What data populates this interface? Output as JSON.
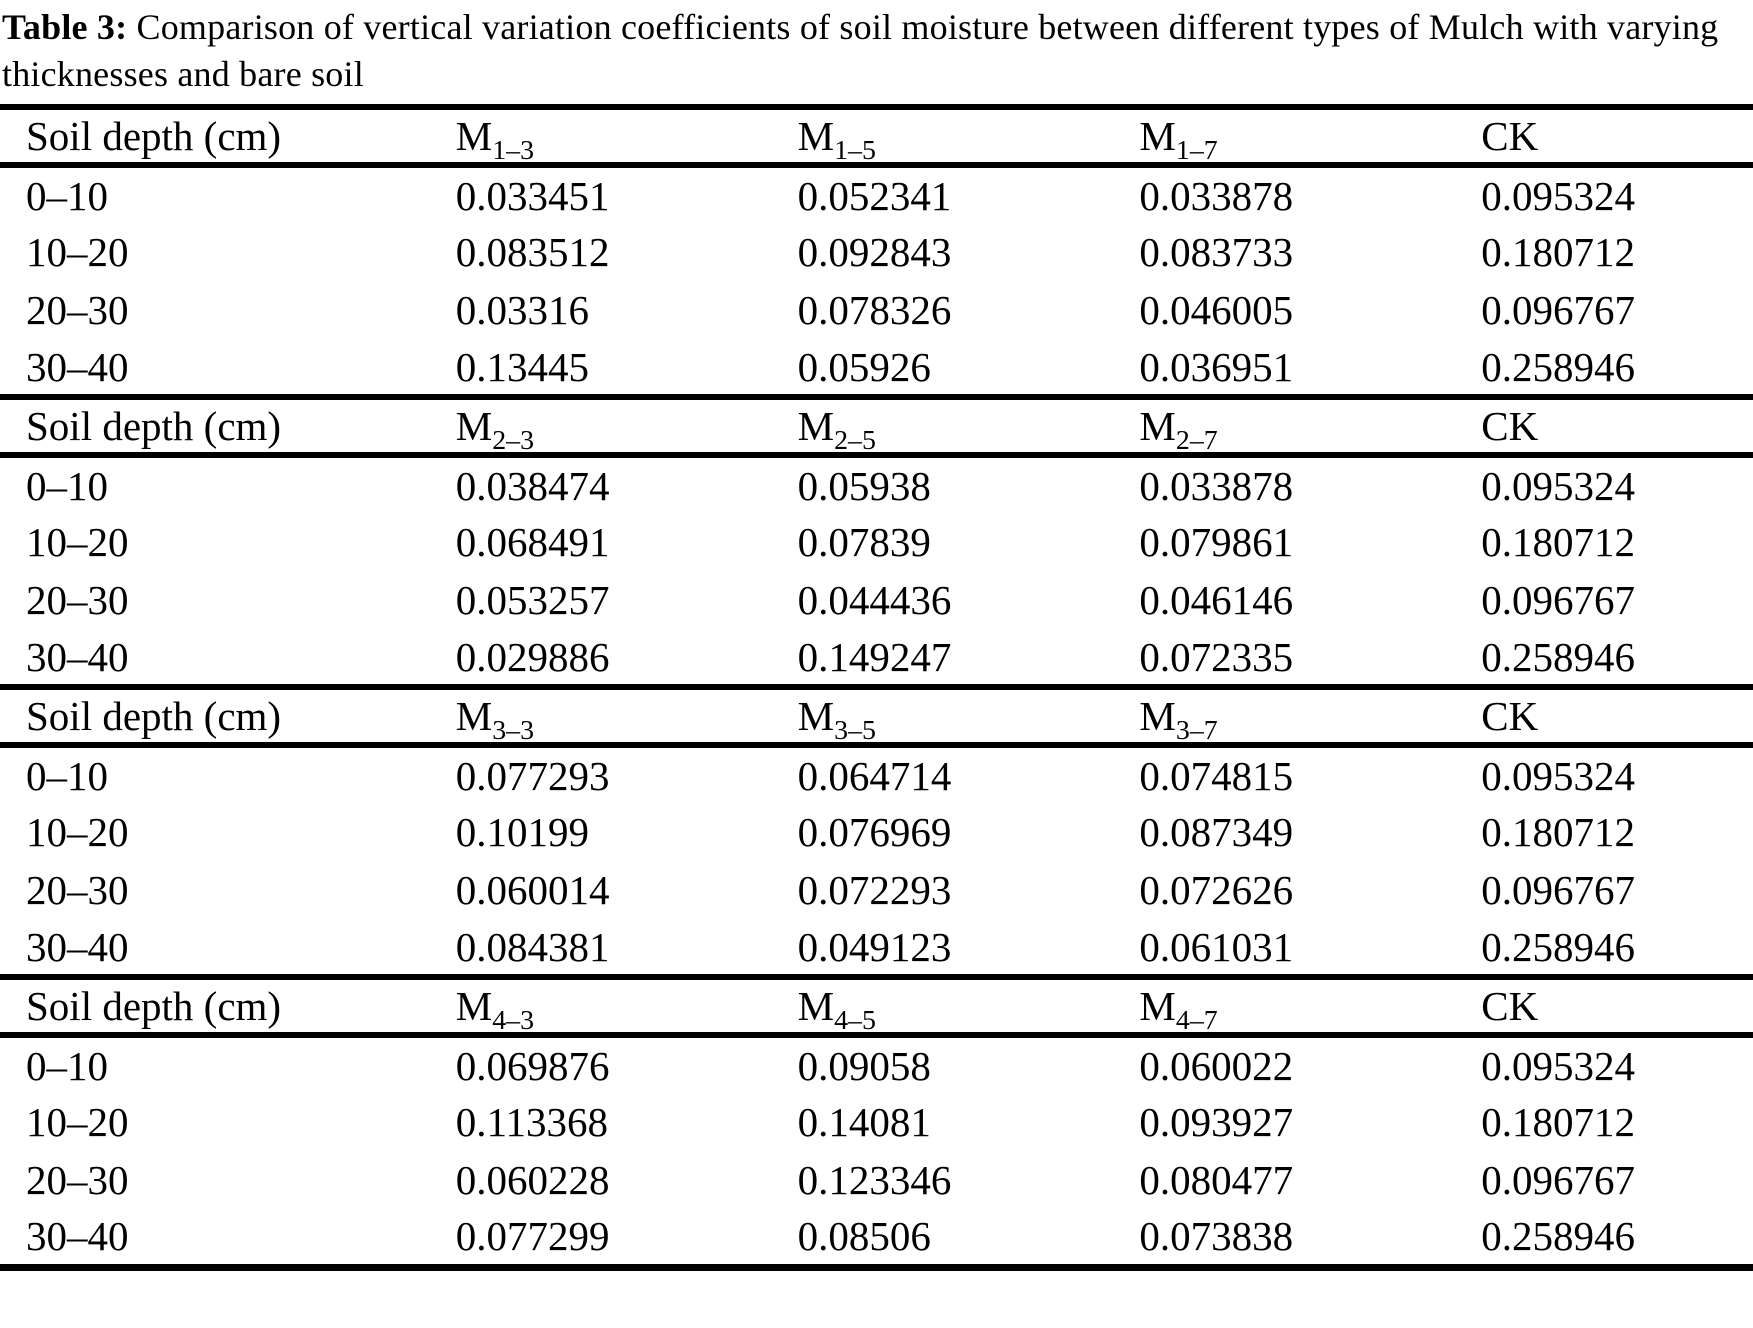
{
  "title": {
    "label": "Table 3:",
    "text": "Comparison of vertical variation coefficients of soil moisture between different types of Mulch with varying thicknesses and bare soil"
  },
  "table": {
    "sections": [
      {
        "headers": [
          {
            "text": "Soil depth (cm)"
          },
          {
            "base": "M",
            "sub": "1–3"
          },
          {
            "base": "M",
            "sub": "1–5"
          },
          {
            "base": "M",
            "sub": "1–7"
          },
          {
            "text": "CK"
          }
        ],
        "rows": [
          {
            "depth": "0–10",
            "values": [
              "0.033451",
              "0.052341",
              "0.033878",
              "0.095324"
            ]
          },
          {
            "depth": "10–20",
            "values": [
              "0.083512",
              "0.092843",
              "0.083733",
              "0.180712"
            ]
          },
          {
            "depth": "20–30",
            "values": [
              "0.03316",
              "0.078326",
              "0.046005",
              "0.096767"
            ]
          },
          {
            "depth": "30–40",
            "values": [
              "0.13445",
              "0.05926",
              "0.036951",
              "0.258946"
            ]
          }
        ]
      },
      {
        "headers": [
          {
            "text": "Soil depth (cm)"
          },
          {
            "base": "M",
            "sub": "2–3"
          },
          {
            "base": "M",
            "sub": "2–5"
          },
          {
            "base": "M",
            "sub": "2–7"
          },
          {
            "text": "CK"
          }
        ],
        "rows": [
          {
            "depth": "0–10",
            "values": [
              "0.038474",
              "0.05938",
              "0.033878",
              "0.095324"
            ]
          },
          {
            "depth": "10–20",
            "values": [
              "0.068491",
              "0.07839",
              "0.079861",
              "0.180712"
            ]
          },
          {
            "depth": "20–30",
            "values": [
              "0.053257",
              "0.044436",
              "0.046146",
              "0.096767"
            ]
          },
          {
            "depth": "30–40",
            "values": [
              "0.029886",
              "0.149247",
              "0.072335",
              "0.258946"
            ]
          }
        ]
      },
      {
        "headers": [
          {
            "text": "Soil depth (cm)"
          },
          {
            "base": "M",
            "sub": "3–3"
          },
          {
            "base": "M",
            "sub": "3–5"
          },
          {
            "base": "M",
            "sub": "3–7"
          },
          {
            "text": "CK"
          }
        ],
        "rows": [
          {
            "depth": "0–10",
            "values": [
              "0.077293",
              "0.064714",
              "0.074815",
              "0.095324"
            ]
          },
          {
            "depth": "10–20",
            "values": [
              "0.10199",
              "0.076969",
              "0.087349",
              "0.180712"
            ]
          },
          {
            "depth": "20–30",
            "values": [
              "0.060014",
              "0.072293",
              "0.072626",
              "0.096767"
            ]
          },
          {
            "depth": "30–40",
            "values": [
              "0.084381",
              "0.049123",
              "0.061031",
              "0.258946"
            ]
          }
        ]
      },
      {
        "headers": [
          {
            "text": "Soil depth (cm)"
          },
          {
            "base": "M",
            "sub": "4–3"
          },
          {
            "base": "M",
            "sub": "4–5"
          },
          {
            "base": "M",
            "sub": "4–7"
          },
          {
            "text": "CK"
          }
        ],
        "rows": [
          {
            "depth": "0–10",
            "values": [
              "0.069876",
              "0.09058",
              "0.060022",
              "0.095324"
            ]
          },
          {
            "depth": "10–20",
            "values": [
              "0.113368",
              "0.14081",
              "0.093927",
              "0.180712"
            ]
          },
          {
            "depth": "20–30",
            "values": [
              "0.060228",
              "0.123346",
              "0.080477",
              "0.096767"
            ]
          },
          {
            "depth": "30–40",
            "values": [
              "0.077299",
              "0.08506",
              "0.073838",
              "0.258946"
            ]
          }
        ]
      }
    ]
  }
}
